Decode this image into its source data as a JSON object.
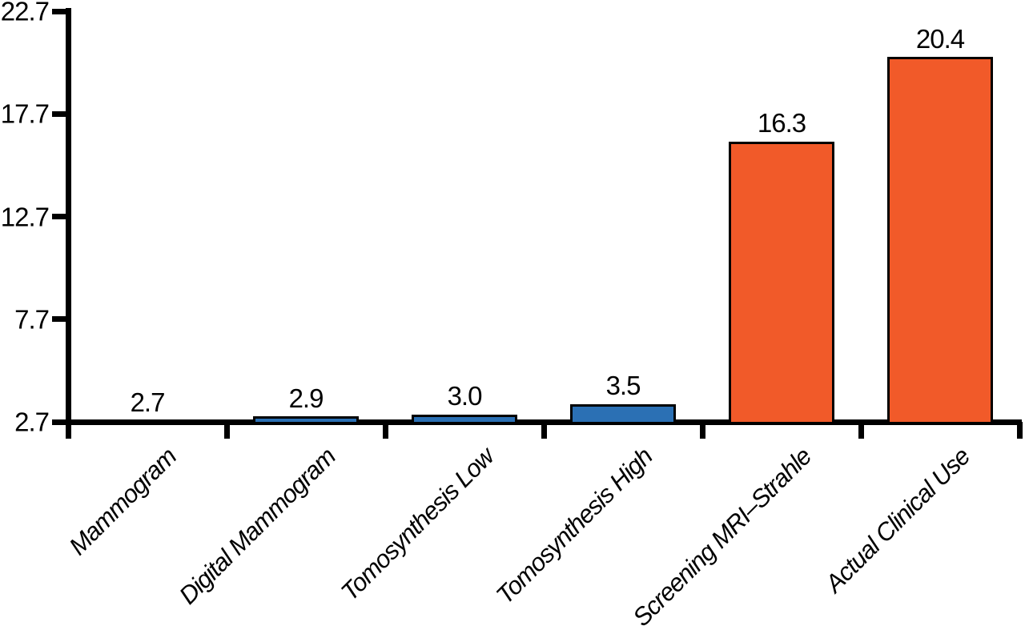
{
  "chart_data": {
    "type": "bar",
    "categories": [
      "Mammogram",
      "Digital Mammogram",
      "Tomosynthesis Low",
      "Tomosynthesis High",
      "Screening MRI–Strahle",
      "Actual Clinical Use"
    ],
    "values": [
      2.7,
      2.9,
      3.0,
      3.5,
      16.3,
      20.4
    ],
    "value_labels": [
      "2.7",
      "2.9",
      "3.0",
      "3.5",
      "16.3",
      "20.4"
    ],
    "bar_colors": [
      "#2B70B4",
      "#2B70B4",
      "#2B70B4",
      "#2B70B4",
      "#F15A29",
      "#F15A29"
    ],
    "title": "",
    "xlabel": "",
    "ylabel": "",
    "ylim": [
      2.7,
      22.7
    ],
    "yticks": [
      2.7,
      7.7,
      12.7,
      17.7,
      22.7
    ],
    "ytick_labels": [
      "2.7",
      "7.7",
      "12.7",
      "17.7",
      "22.7"
    ],
    "grid": false,
    "legend": null,
    "axis_color": "#000000",
    "bar_border_color": "#000000",
    "text_color": "#000000",
    "background_color": "#FFFFFF"
  }
}
